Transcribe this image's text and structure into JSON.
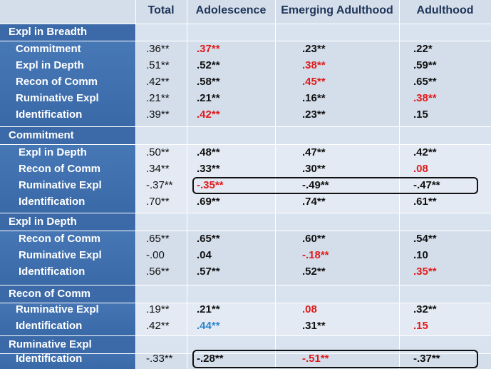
{
  "headers": [
    "Total",
    "Adolescence",
    "Emerging Adulthood",
    "Adulthood"
  ],
  "sections": [
    {
      "title": "Expl in Breadth",
      "rows": [
        {
          "label": "Commitment",
          "total": ".36**",
          "adol": ".37**",
          "emerging": ".23**",
          "adult": ".22*",
          "adol_color": "red",
          "emerging_color": "",
          "adult_color": ""
        },
        {
          "label": "Expl in Depth",
          "total": ".51**",
          "adol": ".52**",
          "emerging": ".38**",
          "adult": ".59**",
          "adol_color": "",
          "emerging_color": "red",
          "adult_color": ""
        },
        {
          "label": "Recon of Comm",
          "total": ".42**",
          "adol": ".58**",
          "emerging": ".45**",
          "adult": ".65**",
          "adol_color": "",
          "emerging_color": "red",
          "adult_color": ""
        },
        {
          "label": "Ruminative Expl",
          "total": ".21**",
          "adol": ".21**",
          "emerging": ".16**",
          "adult": ".38**",
          "adol_color": "",
          "emerging_color": "",
          "adult_color": "red"
        },
        {
          "label": "Identification",
          "total": ".39**",
          "adol": ".42**",
          "emerging": ".23**",
          "adult": ".15",
          "adol_color": "red",
          "emerging_color": "",
          "adult_color": ""
        }
      ]
    },
    {
      "title": "Commitment",
      "rows": [
        {
          "label": "Expl in Depth",
          "total": ".50**",
          "adol": ".48**",
          "emerging": ".47**",
          "adult": ".42**",
          "adol_color": "",
          "emerging_color": "",
          "adult_color": ""
        },
        {
          "label": "Recon of Comm",
          "total": ".34**",
          "adol": ".33**",
          "emerging": ".30**",
          "adult": ".08",
          "adol_color": "",
          "emerging_color": "",
          "adult_color": "red"
        },
        {
          "label": "Ruminative Expl",
          "total": "-.37**",
          "adol": "-.35**",
          "emerging": "-.49**",
          "adult": "-.47**",
          "adol_color": "red",
          "emerging_color": "",
          "adult_color": ""
        },
        {
          "label": "Identification",
          "total": ".70**",
          "adol": ".69**",
          "emerging": ".74**",
          "adult": ".61**",
          "adol_color": "",
          "emerging_color": "",
          "adult_color": ""
        }
      ]
    },
    {
      "title": "Expl in Depth",
      "rows": [
        {
          "label": "Recon of Comm",
          "total": ".65**",
          "adol": ".65**",
          "emerging": ".60**",
          "adult": ".54**",
          "adol_color": "",
          "emerging_color": "",
          "adult_color": ""
        },
        {
          "label": "Ruminative Expl",
          "total": "-.00",
          "adol": ".04",
          "emerging": "-.18**",
          "adult": ".10",
          "adol_color": "",
          "emerging_color": "red",
          "adult_color": ""
        },
        {
          "label": "Identification",
          "total": ".56**",
          "adol": ".57**",
          "emerging": ".52**",
          "adult": ".35**",
          "adol_color": "",
          "emerging_color": "",
          "adult_color": "red"
        }
      ]
    },
    {
      "title": "Recon of Comm",
      "rows": [
        {
          "label": "Ruminative Expl",
          "total": ".19**",
          "adol": ".21**",
          "emerging": ".08",
          "adult": ".32**",
          "adol_color": "",
          "emerging_color": "red",
          "adult_color": ""
        },
        {
          "label": "Identification",
          "total": ".42**",
          "adol": ".44**",
          "emerging": ".31**",
          "adult": ".15",
          "adol_color": "blue",
          "emerging_color": "",
          "adult_color": "red"
        }
      ]
    },
    {
      "title": "Ruminative Expl",
      "rows": [
        {
          "label": "Identification",
          "total": "-.33**",
          "adol": "-.28**",
          "emerging": "-.51**",
          "adult": "-.37**",
          "adol_color": "",
          "emerging_color": "red",
          "adult_color": ""
        }
      ]
    }
  ],
  "colors": {
    "red": "#e01b1b",
    "blue": "#2f86c9"
  }
}
